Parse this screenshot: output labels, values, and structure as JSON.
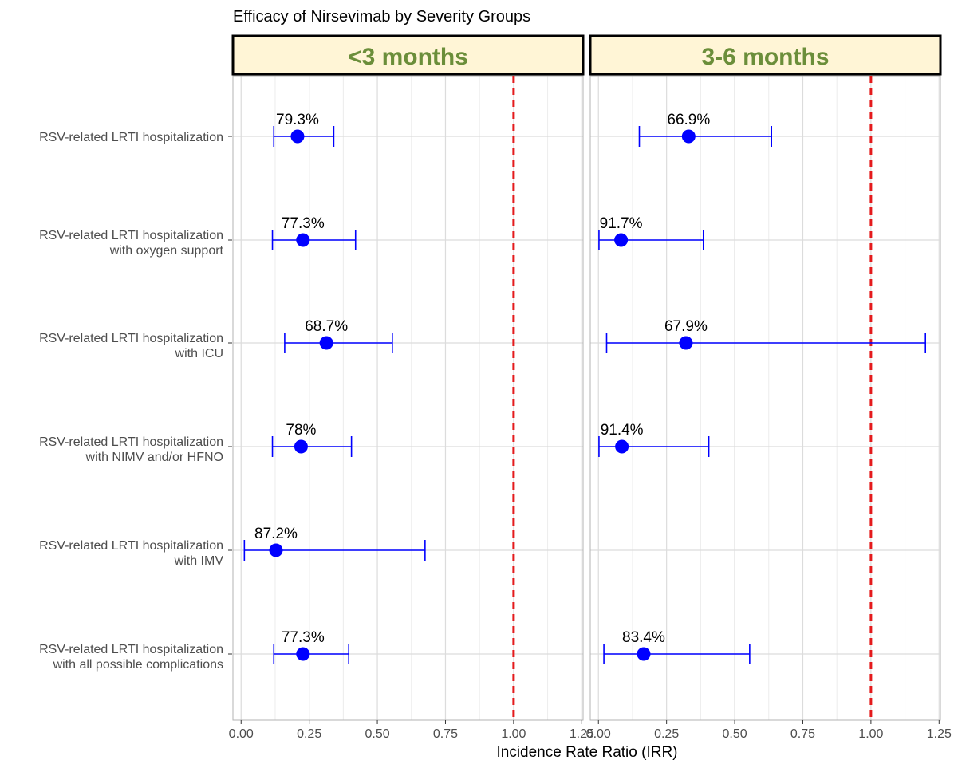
{
  "chart_data": {
    "type": "forest",
    "title": "Efficacy of Nirsevimab by Severity Groups",
    "xlabel": "Incidence Rate Ratio (IRR)",
    "xlim": [
      -0.03,
      1.255
    ],
    "xticks": [
      0.0,
      0.25,
      0.5,
      0.75,
      1.0,
      1.25
    ],
    "xtick_labels": [
      "0.00",
      "0.25",
      "0.50",
      "0.75",
      "1.00",
      "1.25"
    ],
    "reference_line": 1.0,
    "categories": [
      [
        "RSV-related LRTI hospitalization"
      ],
      [
        "RSV-related LRTI hospitalization",
        "with oxygen support"
      ],
      [
        "RSV-related LRTI hospitalization",
        "with ICU"
      ],
      [
        "RSV-related LRTI hospitalization",
        "with NIMV and/or HFNO"
      ],
      [
        "RSV-related LRTI hospitalization",
        "with IMV"
      ],
      [
        "RSV-related LRTI hospitalization",
        "with all possible complications"
      ]
    ],
    "panels": [
      {
        "name": "<3 months",
        "estimates": [
          0.207,
          0.227,
          0.313,
          0.22,
          0.128,
          0.227
        ],
        "lower": [
          0.12,
          0.115,
          0.16,
          0.115,
          0.012,
          0.12
        ],
        "upper": [
          0.34,
          0.42,
          0.555,
          0.405,
          0.675,
          0.395
        ],
        "labels": [
          "79.3%",
          "77.3%",
          "68.7%",
          "78%",
          "87.2%",
          "77.3%"
        ]
      },
      {
        "name": "3-6 months",
        "estimates": [
          0.331,
          0.083,
          0.321,
          0.086,
          null,
          0.166
        ],
        "lower": [
          0.15,
          0.002,
          0.03,
          0.002,
          null,
          0.02
        ],
        "upper": [
          0.635,
          0.385,
          1.2,
          0.405,
          null,
          0.555
        ],
        "labels": [
          "66.9%",
          "91.7%",
          "67.9%",
          "91.4%",
          null,
          "83.4%"
        ]
      }
    ],
    "colors": {
      "point": "#0000ff",
      "reference": "#e41a1c",
      "strip_fill": "#fff5d6",
      "strip_text": "#6b8e3a",
      "grid": "#dcdcdc",
      "axis_text": "#4d4d4d"
    }
  }
}
